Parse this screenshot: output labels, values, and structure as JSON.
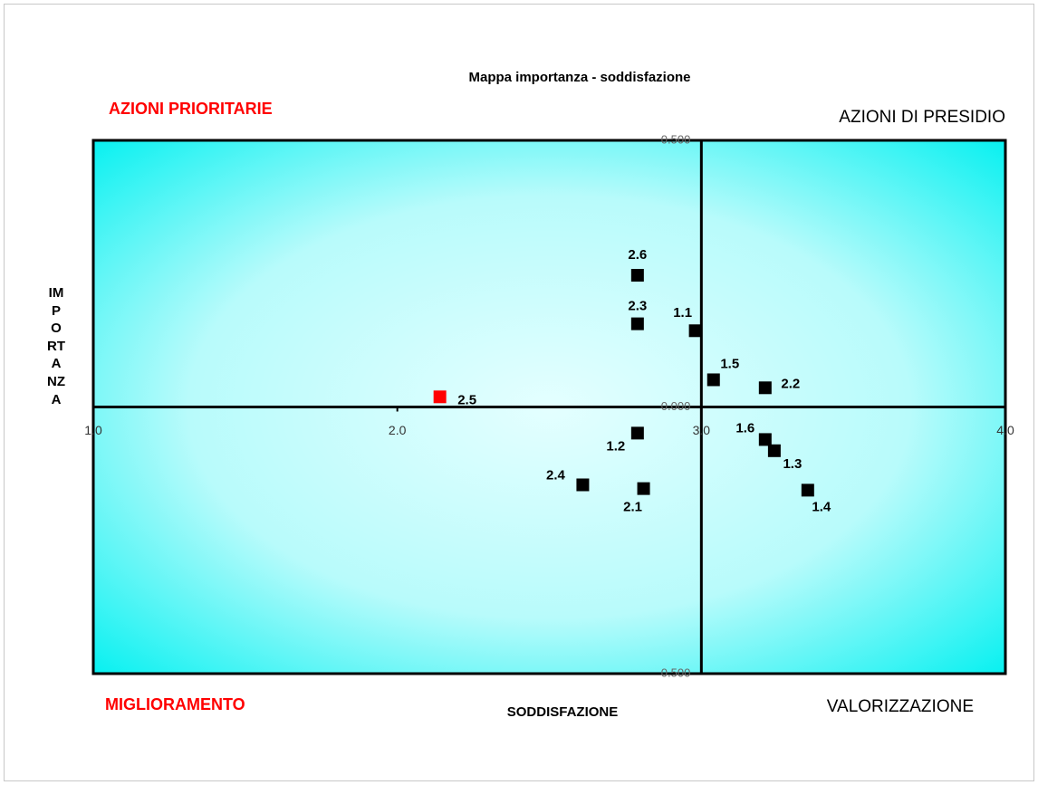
{
  "chart_data": {
    "type": "scatter",
    "title": "Mappa importanza - soddisfazione",
    "x_label": "SODDISFAZIONE",
    "y_label": "IMPORTANZA",
    "quadrant_labels": {
      "top_left": "AZIONI PRIORITARIE",
      "top_right": "AZIONI DI PRESIDIO",
      "bottom_left": "MIGLIORAMENTO",
      "bottom_right": "VALORIZZAZIONE"
    },
    "xlim": [
      1.0,
      4.0
    ],
    "ylim": [
      -0.5,
      0.5
    ],
    "xticks": [
      {
        "value": 1,
        "label": "1.0"
      },
      {
        "value": 2,
        "label": "2.0"
      },
      {
        "value": 3,
        "label": "3.0"
      },
      {
        "value": 4,
        "label": "4.0"
      }
    ],
    "yticks": [
      {
        "value": 0.5,
        "label": "0.500"
      },
      {
        "value": 0,
        "label": "0.000"
      },
      {
        "value": -0.5,
        "label": "0.500"
      }
    ],
    "series": [
      {
        "labels": [
          "2.6",
          "2.3",
          "1.1",
          "1.5",
          "2.2",
          "2.5",
          "1.2",
          "1.6",
          "1.3",
          "1.4",
          "2.4",
          "2.1"
        ],
        "x": [
          2.79,
          2.79,
          2.98,
          3.04,
          3.21,
          2.14,
          2.79,
          3.21,
          3.24,
          3.35,
          2.61,
          2.81
        ],
        "values": [
          0.247,
          0.156,
          0.143,
          0.051,
          0.036,
          0.019,
          -0.049,
          -0.061,
          -0.082,
          -0.156,
          -0.146,
          -0.153
        ],
        "colors": [
          "#000000",
          "#000000",
          "#000000",
          "#000000",
          "#000000",
          "#ff0000",
          "#000000",
          "#000000",
          "#000000",
          "#000000",
          "#000000",
          "#000000"
        ]
      }
    ]
  }
}
